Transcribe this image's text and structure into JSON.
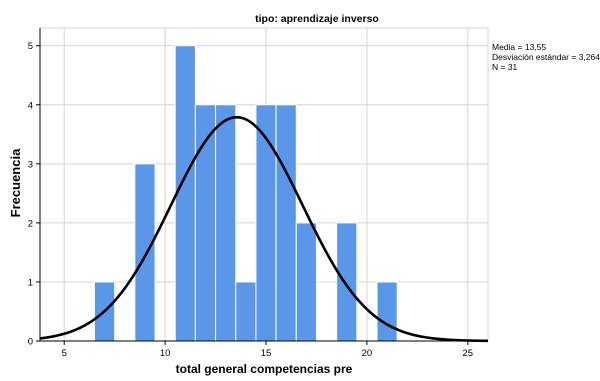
{
  "chart_data": {
    "type": "bar",
    "title": "tipo: aprendizaje inverso",
    "xlabel": "total general competencias pre",
    "ylabel": "Frecuencia",
    "xlim": [
      3.8,
      26
    ],
    "ylim": [
      0,
      5.3
    ],
    "xticks": [
      5,
      10,
      15,
      20,
      25
    ],
    "yticks": [
      0,
      1,
      2,
      3,
      4,
      5
    ],
    "grid": true,
    "bin_width": 1,
    "bins": [
      {
        "start": 6.5,
        "end": 7.5,
        "count": 1
      },
      {
        "start": 8.5,
        "end": 9.5,
        "count": 3
      },
      {
        "start": 10.5,
        "end": 11.5,
        "count": 5
      },
      {
        "start": 11.5,
        "end": 12.5,
        "count": 4
      },
      {
        "start": 12.5,
        "end": 13.5,
        "count": 4
      },
      {
        "start": 13.5,
        "end": 14.5,
        "count": 1
      },
      {
        "start": 14.5,
        "end": 15.5,
        "count": 4
      },
      {
        "start": 15.5,
        "end": 16.5,
        "count": 4
      },
      {
        "start": 16.5,
        "end": 17.5,
        "count": 2
      },
      {
        "start": 18.5,
        "end": 19.5,
        "count": 2
      },
      {
        "start": 20.5,
        "end": 21.5,
        "count": 1
      }
    ],
    "normal_curve": {
      "mean": 13.55,
      "sd": 3.264,
      "n": 31
    },
    "stats": {
      "mean_label": "Media = 13,55",
      "sd_label": "Desviación estándar = 3,264",
      "n_label": "N = 31"
    },
    "colors": {
      "bar": "#5b97e9",
      "bar_edge": "#ffffff",
      "curve": "#000000",
      "grid": "#d4d4d4",
      "axis": "#000000"
    }
  }
}
